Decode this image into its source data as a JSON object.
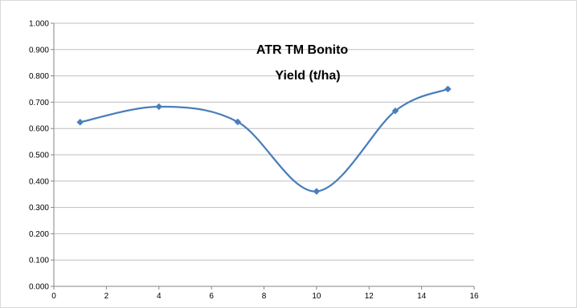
{
  "chart_data": {
    "type": "line",
    "title_lines": [
      "ATR TM Bonito",
      "Yield (t/ha)"
    ],
    "x": [
      1,
      4,
      7,
      10,
      13,
      15
    ],
    "series": [
      {
        "values": [
          0.624,
          0.683,
          0.625,
          0.361,
          0.667,
          0.75
        ]
      }
    ],
    "xlim": [
      0,
      16
    ],
    "ylim": [
      0,
      1
    ],
    "xticks": [
      "0",
      "2",
      "4",
      "6",
      "8",
      "10",
      "12",
      "14",
      "16"
    ],
    "yticks": [
      "0.000",
      "0.100",
      "0.200",
      "0.300",
      "0.400",
      "0.500",
      "0.600",
      "0.700",
      "0.800",
      "0.900",
      "1.000"
    ],
    "grid": true,
    "legend": "none",
    "line_color": "#4a7ebb",
    "smooth": true
  }
}
